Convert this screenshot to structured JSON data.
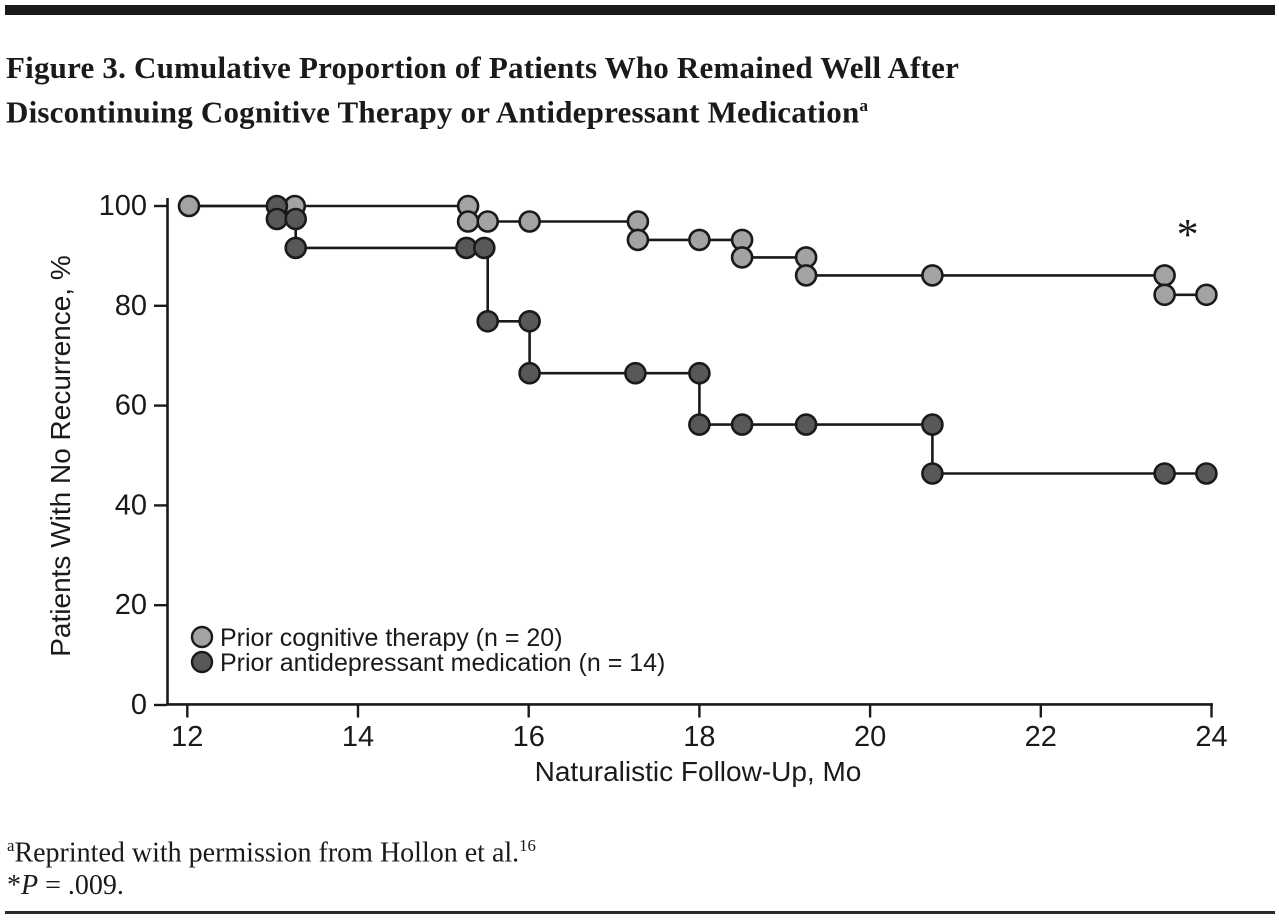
{
  "figure": {
    "title_line1": "Figure 3. Cumulative Proportion of Patients Who Remained Well After",
    "title_line2": "Discontinuing Cognitive Therapy or Antidepressant Medication",
    "title_sup": "a"
  },
  "footnotes": {
    "reprint_sup": "a",
    "reprint_text": "Reprinted with permission from Hollon et al.",
    "reprint_ref": "16",
    "pvalue_star": "*",
    "pvalue_var": "P",
    "pvalue_rest": " = .009."
  },
  "colors": {
    "ink": "#1a1a1a",
    "light_series_fill": "#a3a3a3",
    "dark_series_fill": "#585858",
    "background": "#ffffff"
  },
  "chart_data": {
    "type": "line",
    "subtype": "kaplan-meier-step",
    "title": "",
    "xlabel": "Naturalistic Follow-Up, Mo",
    "ylabel": "Patients With No Recurrence, %",
    "xlim": [
      12,
      24
    ],
    "ylim": [
      0,
      100
    ],
    "xticks": [
      12,
      14,
      16,
      18,
      20,
      22,
      24
    ],
    "yticks": [
      0,
      20,
      40,
      60,
      80,
      100
    ],
    "grid": false,
    "legend_position": "inside-lower-left",
    "annotation": {
      "text": "*",
      "x": 23.72,
      "y": 95.6
    },
    "series": [
      {
        "name": "Prior cognitive therapy (n = 20)",
        "n": 20,
        "color": "#a3a3a3",
        "step_vertices": [
          [
            12.0,
            100
          ],
          [
            15.29,
            100
          ],
          [
            15.29,
            96.9
          ],
          [
            17.28,
            96.9
          ],
          [
            17.28,
            93.2
          ],
          [
            18.5,
            93.2
          ],
          [
            18.5,
            89.7
          ],
          [
            19.25,
            89.7
          ],
          [
            19.25,
            86.1
          ],
          [
            23.45,
            86.1
          ],
          [
            23.45,
            82.2
          ],
          [
            23.94,
            82.2
          ]
        ],
        "markers": [
          [
            12.02,
            100
          ],
          [
            13.26,
            100
          ],
          [
            15.29,
            100
          ],
          [
            15.29,
            96.9
          ],
          [
            15.52,
            96.9
          ],
          [
            16.01,
            96.9
          ],
          [
            17.28,
            96.9
          ],
          [
            17.28,
            93.2
          ],
          [
            18.0,
            93.2
          ],
          [
            18.5,
            93.2
          ],
          [
            18.5,
            89.7
          ],
          [
            19.25,
            89.7
          ],
          [
            19.25,
            86.1
          ],
          [
            20.73,
            86.1
          ],
          [
            23.45,
            86.1
          ],
          [
            23.45,
            82.2
          ],
          [
            23.94,
            82.2
          ]
        ]
      },
      {
        "name": "Prior antidepressant medication (n = 14)",
        "n": 14,
        "color": "#585858",
        "step_vertices": [
          [
            12.0,
            100
          ],
          [
            13.05,
            100
          ],
          [
            13.05,
            97.4
          ],
          [
            13.27,
            97.4
          ],
          [
            13.27,
            91.6
          ],
          [
            15.52,
            91.6
          ],
          [
            15.52,
            76.9
          ],
          [
            16.01,
            76.9
          ],
          [
            16.01,
            66.5
          ],
          [
            18.0,
            66.5
          ],
          [
            18.0,
            56.2
          ],
          [
            20.73,
            56.2
          ],
          [
            20.73,
            46.4
          ],
          [
            23.94,
            46.4
          ]
        ],
        "markers": [
          [
            13.05,
            100
          ],
          [
            13.05,
            97.4
          ],
          [
            13.27,
            97.4
          ],
          [
            13.27,
            91.6
          ],
          [
            15.27,
            91.6
          ],
          [
            15.48,
            91.6
          ],
          [
            15.52,
            76.9
          ],
          [
            16.01,
            76.9
          ],
          [
            16.01,
            66.5
          ],
          [
            17.25,
            66.5
          ],
          [
            18.0,
            66.5
          ],
          [
            18.0,
            56.2
          ],
          [
            18.5,
            56.2
          ],
          [
            19.25,
            56.2
          ],
          [
            20.73,
            56.2
          ],
          [
            20.73,
            46.4
          ],
          [
            23.45,
            46.4
          ],
          [
            23.94,
            46.4
          ]
        ]
      }
    ]
  }
}
